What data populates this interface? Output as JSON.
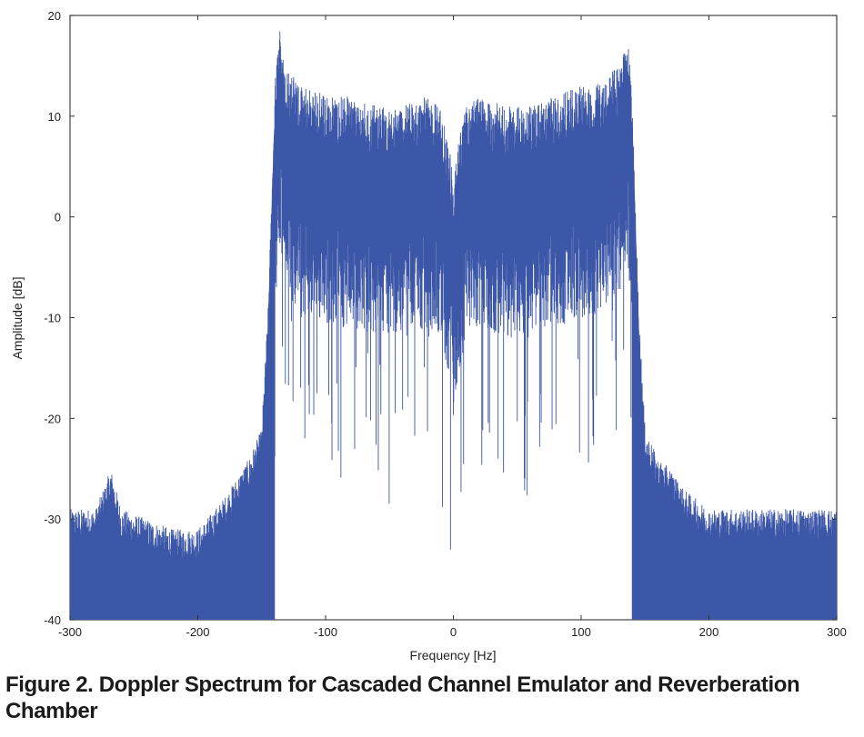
{
  "caption": "Figure 2. Doppler Spectrum for Cascaded Channel Emulator and Reverberation Chamber",
  "chart_data": {
    "type": "line",
    "title": "",
    "xlabel": "Frequency [Hz]",
    "ylabel": "Amplitude [dB]",
    "xlim": [
      -300,
      300
    ],
    "ylim": [
      -40,
      20
    ],
    "xticks": [
      -300,
      -200,
      -100,
      0,
      100,
      200,
      300
    ],
    "yticks": [
      -40,
      -30,
      -20,
      -10,
      0,
      10,
      20
    ],
    "xtick_labels": [
      "-300",
      "-200",
      "-100",
      "0",
      "100",
      "200",
      "300"
    ],
    "ytick_labels": [
      "-40",
      "-30",
      "-20",
      "-10",
      "0",
      "10",
      "20"
    ],
    "grid": false,
    "line_color": "#3d57a8",
    "series": [
      {
        "x": [
          -300,
          -280,
          -268,
          -260,
          -240,
          -220,
          -200,
          -180,
          -160,
          -150,
          -145,
          -140,
          -136,
          -130,
          -120,
          -110,
          -100,
          -80,
          -60,
          -40,
          -20,
          -10,
          -5,
          -2,
          0,
          2,
          5,
          10,
          20,
          40,
          60,
          80,
          100,
          110,
          120,
          130,
          136,
          140,
          145,
          150,
          160,
          170,
          180,
          200,
          220,
          240,
          260,
          280,
          300
        ],
        "y": [
          -32,
          -32,
          -28,
          -32,
          -33,
          -34,
          -34,
          -31,
          -27,
          -24,
          -12,
          8,
          14,
          10,
          8,
          8,
          7,
          7,
          6,
          6,
          7,
          6,
          3,
          1,
          -3,
          1,
          3,
          6,
          7,
          6,
          6,
          7,
          8,
          8,
          9,
          10,
          14,
          8,
          -12,
          -24,
          -27,
          -28,
          -30,
          -32,
          -32,
          -32,
          -32,
          -32,
          -32
        ]
      }
    ]
  }
}
